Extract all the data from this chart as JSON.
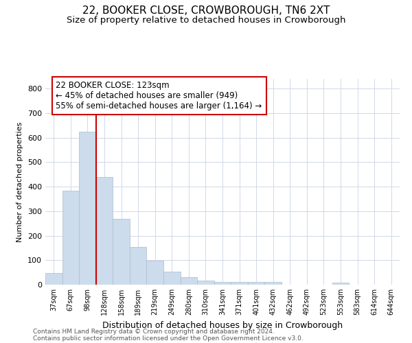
{
  "title": "22, BOOKER CLOSE, CROWBOROUGH, TN6 2XT",
  "subtitle": "Size of property relative to detached houses in Crowborough",
  "xlabel": "Distribution of detached houses by size in Crowborough",
  "ylabel": "Number of detached properties",
  "footer_line1": "Contains HM Land Registry data © Crown copyright and database right 2024.",
  "footer_line2": "Contains public sector information licensed under the Open Government Licence v3.0.",
  "categories": [
    "37sqm",
    "67sqm",
    "98sqm",
    "128sqm",
    "158sqm",
    "189sqm",
    "219sqm",
    "249sqm",
    "280sqm",
    "310sqm",
    "341sqm",
    "371sqm",
    "401sqm",
    "432sqm",
    "462sqm",
    "492sqm",
    "523sqm",
    "553sqm",
    "583sqm",
    "614sqm",
    "644sqm"
  ],
  "values": [
    47,
    385,
    625,
    440,
    268,
    155,
    97,
    52,
    30,
    17,
    10,
    10,
    10,
    10,
    0,
    0,
    0,
    8,
    0,
    0,
    0
  ],
  "bar_color": "#ccdcec",
  "bar_edge_color": "#aabccc",
  "vline_x": 3,
  "vline_color": "#cc0000",
  "annotation_line1": "22 BOOKER CLOSE: 123sqm",
  "annotation_line2": "← 45% of detached houses are smaller (949)",
  "annotation_line3": "55% of semi-detached houses are larger (1,164) →",
  "ylim": [
    0,
    840
  ],
  "yticks": [
    0,
    100,
    200,
    300,
    400,
    500,
    600,
    700,
    800
  ],
  "title_fontsize": 11,
  "subtitle_fontsize": 9.5,
  "annotation_fontsize": 8.5,
  "axis_fontsize": 8,
  "xlabel_fontsize": 9,
  "ylabel_fontsize": 8,
  "background_color": "#ffffff",
  "grid_color": "#d0d8e8",
  "footer_fontsize": 6.5,
  "footer_color": "#555555"
}
